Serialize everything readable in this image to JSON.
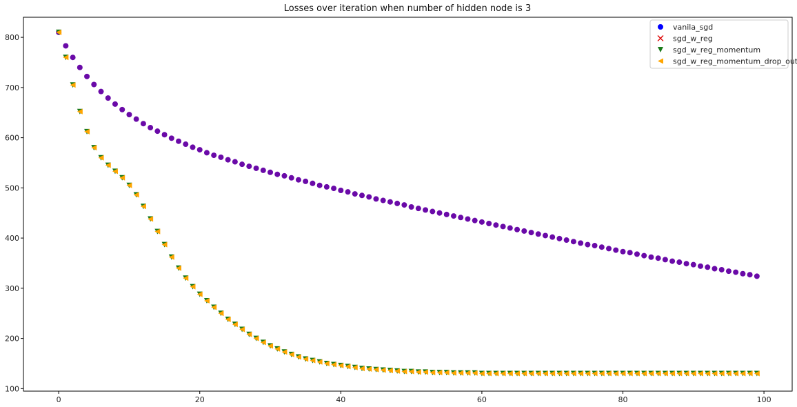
{
  "chart_data": {
    "type": "scatter",
    "title": "Losses over iteration when number of hidden node is 3",
    "xlabel": "",
    "ylabel": "",
    "xlim": [
      -5,
      104
    ],
    "ylim": [
      95,
      840
    ],
    "xticks": [
      0,
      20,
      40,
      60,
      80,
      100
    ],
    "yticks": [
      100,
      200,
      300,
      400,
      500,
      600,
      700,
      800
    ],
    "grid": false,
    "legend_position": "top-right",
    "series": [
      {
        "name": "vanila_sgd",
        "color": "#0000ff",
        "marker": "circle",
        "x_start": 0,
        "x_step": 1,
        "values": [
          810,
          783,
          760,
          740,
          722,
          706,
          692,
          679,
          667,
          656,
          646,
          637,
          628,
          620,
          613,
          606,
          599,
          593,
          587,
          581,
          576,
          570,
          565,
          561,
          556,
          552,
          547,
          543,
          539,
          535,
          531,
          527,
          524,
          520,
          516,
          513,
          509,
          505,
          502,
          499,
          495,
          492,
          488,
          485,
          482,
          478,
          475,
          472,
          469,
          466,
          462,
          459,
          456,
          453,
          450,
          447,
          444,
          441,
          438,
          435,
          432,
          429,
          426,
          423,
          420,
          417,
          414,
          411,
          408,
          405,
          402,
          399,
          396,
          393,
          390,
          387,
          385,
          382,
          379,
          376,
          373,
          371,
          368,
          365,
          362,
          360,
          357,
          354,
          352,
          349,
          347,
          344,
          342,
          339,
          337,
          334,
          332,
          329,
          327,
          324
        ]
      },
      {
        "name": "sgd_w_reg",
        "color": "#dd0000",
        "marker": "x",
        "x_start": 0,
        "x_step": 1,
        "values": [
          810,
          783,
          760,
          740,
          722,
          706,
          692,
          679,
          667,
          656,
          646,
          637,
          628,
          620,
          613,
          606,
          599,
          593,
          587,
          581,
          576,
          570,
          565,
          561,
          556,
          552,
          547,
          543,
          539,
          535,
          531,
          527,
          524,
          520,
          516,
          513,
          509,
          505,
          502,
          499,
          495,
          492,
          488,
          485,
          482,
          478,
          475,
          472,
          469,
          466,
          462,
          459,
          456,
          453,
          450,
          447,
          444,
          441,
          438,
          435,
          432,
          429,
          426,
          423,
          420,
          417,
          414,
          411,
          408,
          405,
          402,
          399,
          396,
          393,
          390,
          387,
          385,
          382,
          379,
          376,
          373,
          371,
          368,
          365,
          362,
          360,
          357,
          354,
          352,
          349,
          347,
          344,
          342,
          339,
          337,
          334,
          332,
          329,
          327,
          324
        ]
      },
      {
        "name": "sgd_w_reg_momentum",
        "color": "#1a7a1a",
        "marker": "triangle-down",
        "x_start": 0,
        "x_step": 1,
        "values": [
          810,
          760,
          705,
          652,
          612,
          580,
          560,
          545,
          533,
          520,
          505,
          486,
          463,
          438,
          413,
          387,
          362,
          340,
          320,
          303,
          288,
          275,
          262,
          250,
          238,
          228,
          218,
          208,
          200,
          192,
          185,
          179,
          173,
          168,
          163,
          159,
          156,
          153,
          150,
          148,
          146,
          144,
          142,
          140,
          139,
          138,
          137,
          136,
          135,
          134,
          134,
          133,
          133,
          132,
          132,
          132,
          131,
          131,
          131,
          131,
          130,
          130,
          130,
          130,
          130,
          130,
          130,
          130,
          130,
          130,
          130,
          130,
          130,
          130,
          130,
          130,
          130,
          130,
          130,
          130,
          130,
          130,
          130,
          130,
          130,
          130,
          130,
          130,
          130,
          130,
          130,
          130,
          130,
          130,
          130,
          130,
          130,
          130,
          130,
          130
        ]
      },
      {
        "name": "sgd_w_reg_momentum_drop_out",
        "color": "#ffa500",
        "marker": "triangle-left",
        "x_start": 0,
        "x_step": 1,
        "values": [
          810,
          760,
          705,
          652,
          612,
          580,
          560,
          545,
          533,
          520,
          505,
          486,
          463,
          438,
          413,
          387,
          362,
          340,
          320,
          303,
          288,
          275,
          262,
          250,
          238,
          228,
          218,
          208,
          200,
          192,
          185,
          179,
          173,
          168,
          163,
          159,
          156,
          153,
          150,
          148,
          146,
          144,
          142,
          140,
          139,
          138,
          137,
          136,
          135,
          134,
          134,
          133,
          133,
          132,
          132,
          132,
          131,
          131,
          131,
          131,
          130,
          130,
          130,
          130,
          130,
          130,
          130,
          130,
          130,
          130,
          130,
          130,
          130,
          130,
          130,
          130,
          130,
          130,
          130,
          130,
          130,
          130,
          130,
          130,
          130,
          130,
          130,
          130,
          130,
          130,
          130,
          130,
          130,
          130,
          130,
          130,
          130,
          130,
          130,
          130
        ]
      }
    ],
    "overlap_colors": {
      "vanila_sgd_and_sgd_w_reg": "#6a0aa8"
    }
  }
}
